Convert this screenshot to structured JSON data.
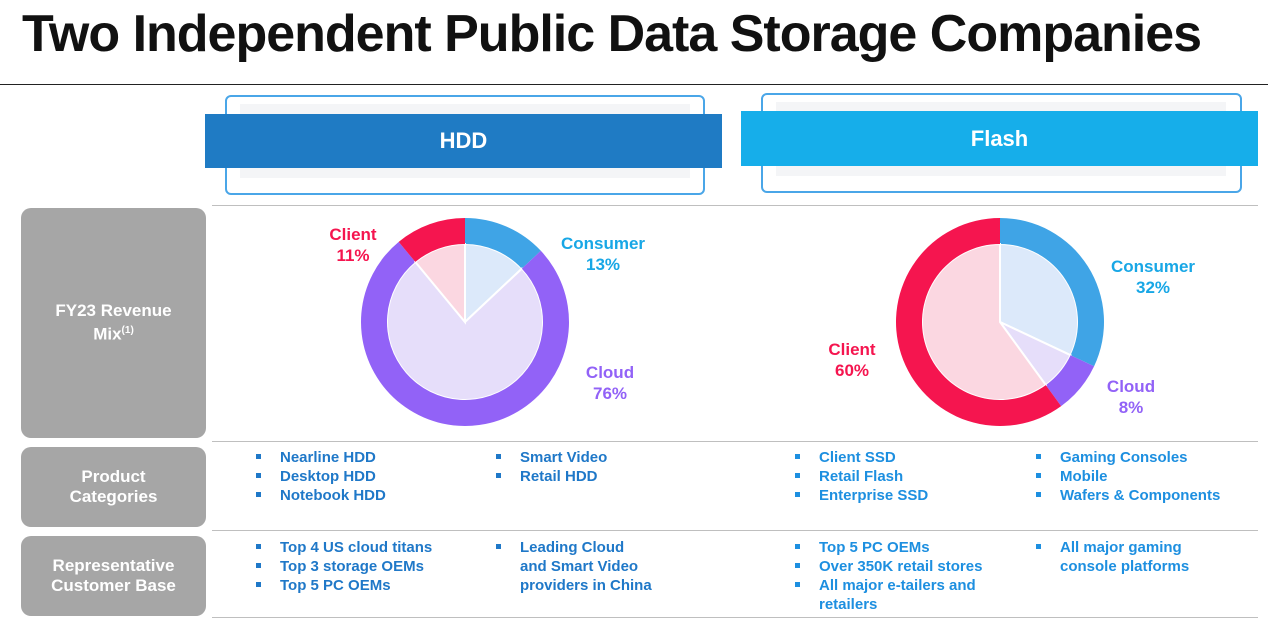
{
  "title": "Two Independent Public Data Storage Companies",
  "segments": {
    "hdd": "HDD",
    "flash": "Flash"
  },
  "row_labels": {
    "revenue_line1": "FY23 Revenue",
    "revenue_line2": "Mix",
    "revenue_sup": "(1)",
    "product_line1": "Product",
    "product_line2": "Categories",
    "customer_line1": "Representative",
    "customer_line2": "Customer Base"
  },
  "colors": {
    "client": "#f5154f",
    "consumer": "#3fa4e6",
    "cloud": "#9262f7",
    "hdd_band": "#1f7bc4",
    "flash_band": "#16aeea"
  },
  "chart_data": [
    {
      "type": "pie",
      "title": "HDD",
      "categories": [
        "Consumer",
        "Cloud",
        "Client"
      ],
      "values": [
        13,
        76,
        11
      ],
      "labels": {
        "client_name": "Client",
        "client_pct": "11%",
        "consumer_name": "Consumer",
        "consumer_pct": "13%",
        "cloud_name": "Cloud",
        "cloud_pct": "76%"
      }
    },
    {
      "type": "pie",
      "title": "Flash",
      "categories": [
        "Consumer",
        "Cloud",
        "Client"
      ],
      "values": [
        32,
        8,
        60
      ],
      "labels": {
        "client_name": "Client",
        "client_pct": "60%",
        "consumer_name": "Consumer",
        "consumer_pct": "32%",
        "cloud_name": "Cloud",
        "cloud_pct": "8%"
      }
    }
  ],
  "products": {
    "hdd_col1": [
      "Nearline HDD",
      "Desktop HDD",
      "Notebook HDD"
    ],
    "hdd_col2": [
      "Smart Video",
      "Retail HDD"
    ],
    "flash_col1": [
      "Client SSD",
      "Retail Flash",
      "Enterprise SSD"
    ],
    "flash_col2": [
      "Gaming Consoles",
      "Mobile",
      "Wafers & Components"
    ]
  },
  "customers": {
    "hdd_col1": [
      "Top 4 US cloud titans",
      "Top 3 storage OEMs",
      "Top 5 PC OEMs"
    ],
    "hdd_col2_line1": "Leading Cloud",
    "hdd_col2_line2": "and Smart Video",
    "hdd_col2_line3": "providers in China",
    "flash_col1_a": "Top 5 PC OEMs",
    "flash_col1_b": "Over 350K retail stores",
    "flash_col1_c1": "All major e-tailers and",
    "flash_col1_c2": "retailers",
    "flash_col2_line1": "All major gaming",
    "flash_col2_line2": "console platforms"
  }
}
